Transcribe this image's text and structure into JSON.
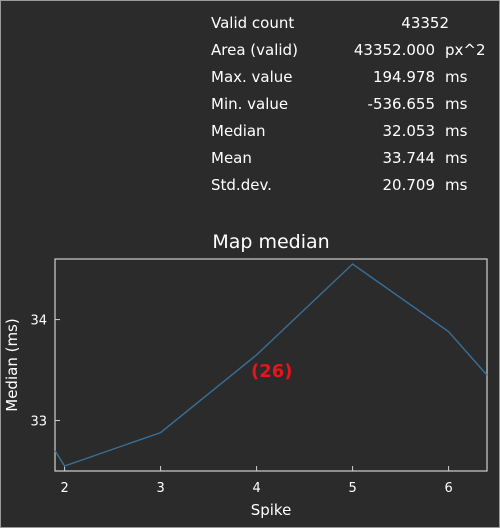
{
  "stats": [
    {
      "label": "Valid count",
      "value": "43352",
      "unit": ""
    },
    {
      "label": "Area (valid)",
      "value": "43352.000",
      "unit": "px^2"
    },
    {
      "label": "Max. value",
      "value": "194.978",
      "unit": "ms"
    },
    {
      "label": "Min. value",
      "value": "-536.655",
      "unit": "ms"
    },
    {
      "label": "Median",
      "value": "32.053",
      "unit": "ms"
    },
    {
      "label": "Mean",
      "value": "33.744",
      "unit": "ms"
    },
    {
      "label": "Std.dev.",
      "value": "20.709",
      "unit": "ms"
    }
  ],
  "overlay": {
    "badge": "(26)"
  },
  "colors": {
    "background": "#2b2b2b",
    "line": "#3a6f96",
    "badge": "#e8141a",
    "axis": "#d0d0d0"
  },
  "chart_data": {
    "type": "line",
    "title": "Map median",
    "xlabel": "Spike",
    "ylabel": "Median (ms)",
    "xlim": [
      1.9,
      6.4
    ],
    "ylim": [
      32.5,
      34.6
    ],
    "xticks": [
      2,
      3,
      4,
      5,
      6
    ],
    "yticks": [
      33,
      34
    ],
    "grid": false,
    "x": [
      1.9,
      2.0,
      3.0,
      4.0,
      5.0,
      6.0,
      6.4
    ],
    "y": [
      32.7,
      32.55,
      32.88,
      33.65,
      34.55,
      33.88,
      33.45
    ]
  }
}
